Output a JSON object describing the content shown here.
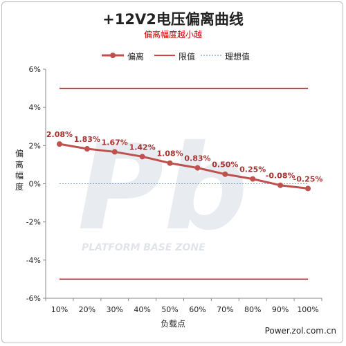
{
  "chart_data": {
    "type": "line",
    "title": "+12V2电压偏离曲线",
    "subtitle": "偏离幅度越小越",
    "xlabel": "负载点",
    "ylabel": "偏离幅度",
    "categories": [
      "10%",
      "20%",
      "30%",
      "40%",
      "50%",
      "60%",
      "70%",
      "80%",
      "90%",
      "100%"
    ],
    "series": [
      {
        "name": "偏离",
        "values": [
          2.08,
          1.83,
          1.67,
          1.42,
          1.08,
          0.83,
          0.5,
          0.25,
          -0.08,
          -0.25
        ],
        "labels": [
          "2.08%",
          "1.83%",
          "1.67%",
          "1.42%",
          "1.08%",
          "0.83%",
          "0.50%",
          "0.25%",
          "-0.08%",
          "-0.25%"
        ],
        "color": "#c0504d"
      }
    ],
    "limits": {
      "name": "限值",
      "values": [
        5,
        -5
      ],
      "color": "#cc0000"
    },
    "ideal": {
      "name": "理想值",
      "value": 0,
      "color": "#4f81bd"
    },
    "ylim": [
      -6,
      6
    ],
    "yticks": [
      6,
      4,
      2,
      0,
      -2,
      -4,
      -6
    ],
    "ytick_labels": [
      "6%",
      "4%",
      "2%",
      "0%",
      "-2%",
      "-4%",
      "-6%"
    ],
    "grid": false,
    "legend_position": "top"
  },
  "watermark": {
    "main": "Pb",
    "sub": "PLATFORM BASE ZONE"
  },
  "credit": "Power.zol.com.cn"
}
